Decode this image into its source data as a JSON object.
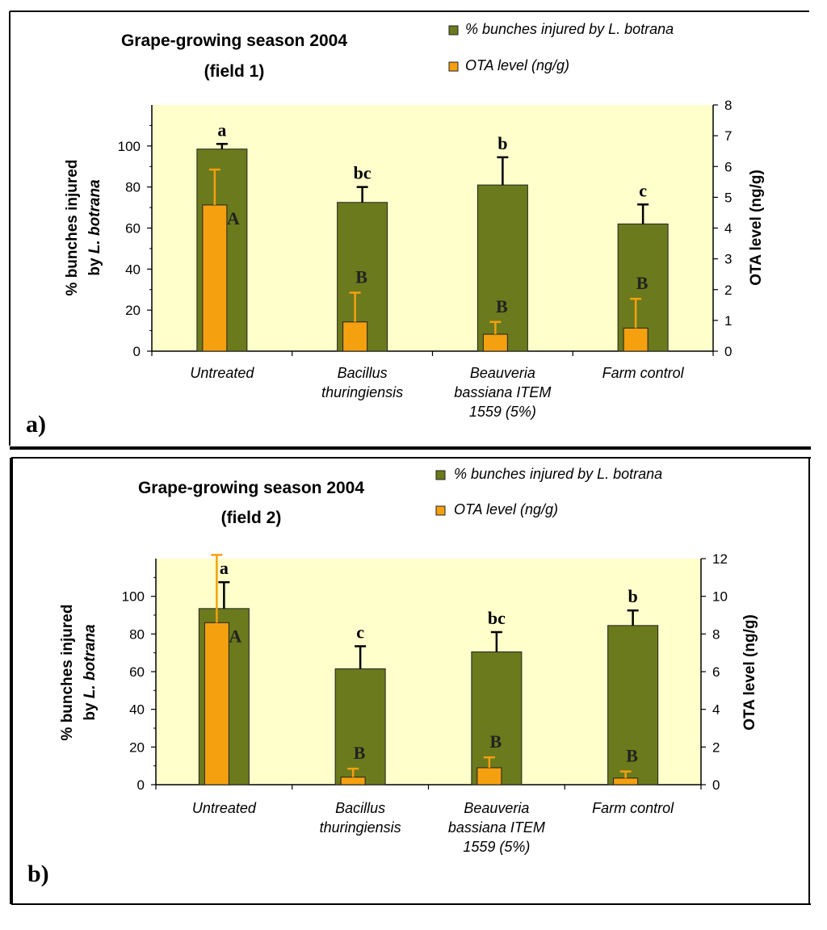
{
  "chart_data": [
    {
      "type": "bar",
      "panel_label": "a)",
      "title_lines": [
        "Grape-growing season 2004",
        "(field 1)"
      ],
      "categories": [
        [
          "Untreated"
        ],
        [
          "Bacillus",
          "thuringiensis"
        ],
        [
          "Beauveria",
          "bassiana ITEM",
          "1559 (5%)"
        ],
        [
          "Farm control"
        ]
      ],
      "series": [
        {
          "name": "% bunches injured by L. botrana",
          "axis": "left",
          "color": "#6b7a1c",
          "values": [
            98.5,
            72.5,
            81,
            62
          ],
          "error": [
            2.5,
            7.5,
            13.5,
            9.5
          ],
          "letters": [
            "a",
            "bc",
            "b",
            "c"
          ]
        },
        {
          "name": "OTA level (ng/g)",
          "axis": "right",
          "color": "#f5a00f",
          "values": [
            4.75,
            0.95,
            0.55,
            0.75
          ],
          "error": [
            1.15,
            0.95,
            0.4,
            0.95
          ],
          "letters": [
            "A",
            "B",
            "B",
            "B"
          ]
        }
      ],
      "ylabel_left": [
        "% bunches injured",
        "by L. botrana"
      ],
      "ylabel_right": "OTA level (ng/g)",
      "yleft_ticks": [
        0,
        20,
        40,
        60,
        80,
        100
      ],
      "yleft_max": 120,
      "yright_ticks": [
        0,
        1,
        2,
        3,
        4,
        5,
        6,
        7,
        8
      ],
      "yright_max": 8,
      "plot_bg": "#ffffcc"
    },
    {
      "type": "bar",
      "panel_label": "b)",
      "title_lines": [
        "Grape-growing season 2004",
        "(field 2)"
      ],
      "categories": [
        [
          "Untreated"
        ],
        [
          "Bacillus",
          "thuringiensis"
        ],
        [
          "Beauveria",
          "bassiana ITEM",
          "1559 (5%)"
        ],
        [
          "Farm control"
        ]
      ],
      "series": [
        {
          "name": "% bunches injured by L. botrana",
          "axis": "left",
          "color": "#6b7a1c",
          "values": [
            93.5,
            61.5,
            70.5,
            84.5
          ],
          "error": [
            14,
            12,
            10.5,
            8
          ],
          "letters": [
            "a",
            "c",
            "bc",
            "b"
          ]
        },
        {
          "name": "OTA level (ng/g)",
          "axis": "right",
          "color": "#f5a00f",
          "values": [
            8.6,
            0.4,
            0.9,
            0.35
          ],
          "error": [
            3.6,
            0.45,
            0.55,
            0.35
          ],
          "letters": [
            "A",
            "B",
            "B",
            "B"
          ]
        }
      ],
      "ylabel_left": [
        "% bunches injured",
        "by L. botrana"
      ],
      "ylabel_right": "OTA level (ng/g)",
      "yleft_ticks": [
        0,
        20,
        40,
        60,
        80,
        100
      ],
      "yleft_max": 120,
      "yright_ticks": [
        0,
        2,
        4,
        6,
        8,
        10,
        12
      ],
      "yright_max": 12,
      "plot_bg": "#ffffcc"
    }
  ]
}
